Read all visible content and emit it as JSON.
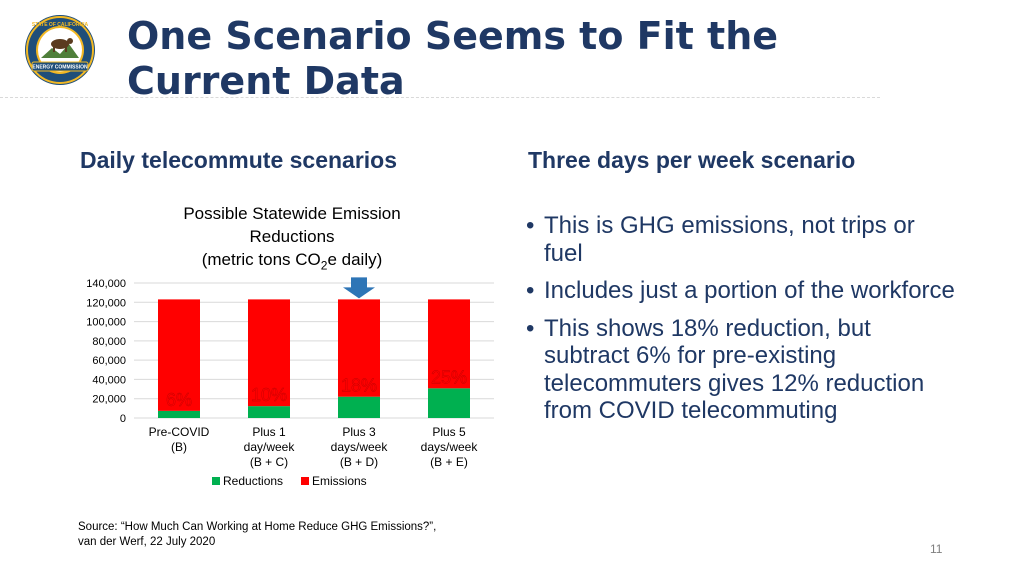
{
  "title": {
    "line1": "One Scenario Seems to Fit the",
    "line2": "Current Data"
  },
  "logo": {
    "icon": "california-energy-commission-seal",
    "text_top": "STATE OF CALIFORNIA",
    "text_bottom": "ENERGY COMMISSION"
  },
  "left_heading": "Daily telecommute scenarios",
  "right_heading": "Three days per week scenario",
  "chart_data": {
    "type": "bar",
    "stacked": true,
    "title_lines": [
      "Possible Statewide Emission",
      "Reductions"
    ],
    "title_line3": {
      "before": "(metric tons CO",
      "sub": "2",
      "after": "e daily)"
    },
    "categories": [
      [
        "Pre-COVID",
        "(B)"
      ],
      [
        "Plus 1",
        "day/week",
        "(B + C)"
      ],
      [
        "Plus 3",
        "days/week",
        "(B + D)"
      ],
      [
        "Plus 5",
        "days/week",
        "(B + E)"
      ]
    ],
    "series": [
      {
        "name": "Reductions",
        "color": "#00b050",
        "values": [
          7400,
          12300,
          22100,
          30800
        ]
      },
      {
        "name": "Emissions",
        "color": "#ff0000",
        "values": [
          115600,
          110700,
          100900,
          92200
        ]
      }
    ],
    "bar_labels": [
      "6%",
      "10%",
      "18%",
      "25%"
    ],
    "ylim": [
      0,
      140000
    ],
    "y_ticks": [
      "0",
      "20,000",
      "40,000",
      "60,000",
      "80,000",
      "100,000",
      "120,000",
      "140,000"
    ],
    "grid": true,
    "legend_position": "bottom",
    "highlight_category": 2,
    "highlight_arrow_color": "#2e75b6"
  },
  "bullets": [
    "This is GHG emissions, not trips or fuel",
    "Includes just a portion of the workforce",
    "This shows 18% reduction, but subtract 6% for pre-existing telecommuters gives 12% reduction from COVID telecommuting"
  ],
  "bullet_glyph": "•",
  "source": {
    "line1": "Source: “How Much Can Working at Home Reduce GHG Emissions?”,",
    "line2": "van der Werf, 22 July 2020"
  },
  "page_number": "11"
}
